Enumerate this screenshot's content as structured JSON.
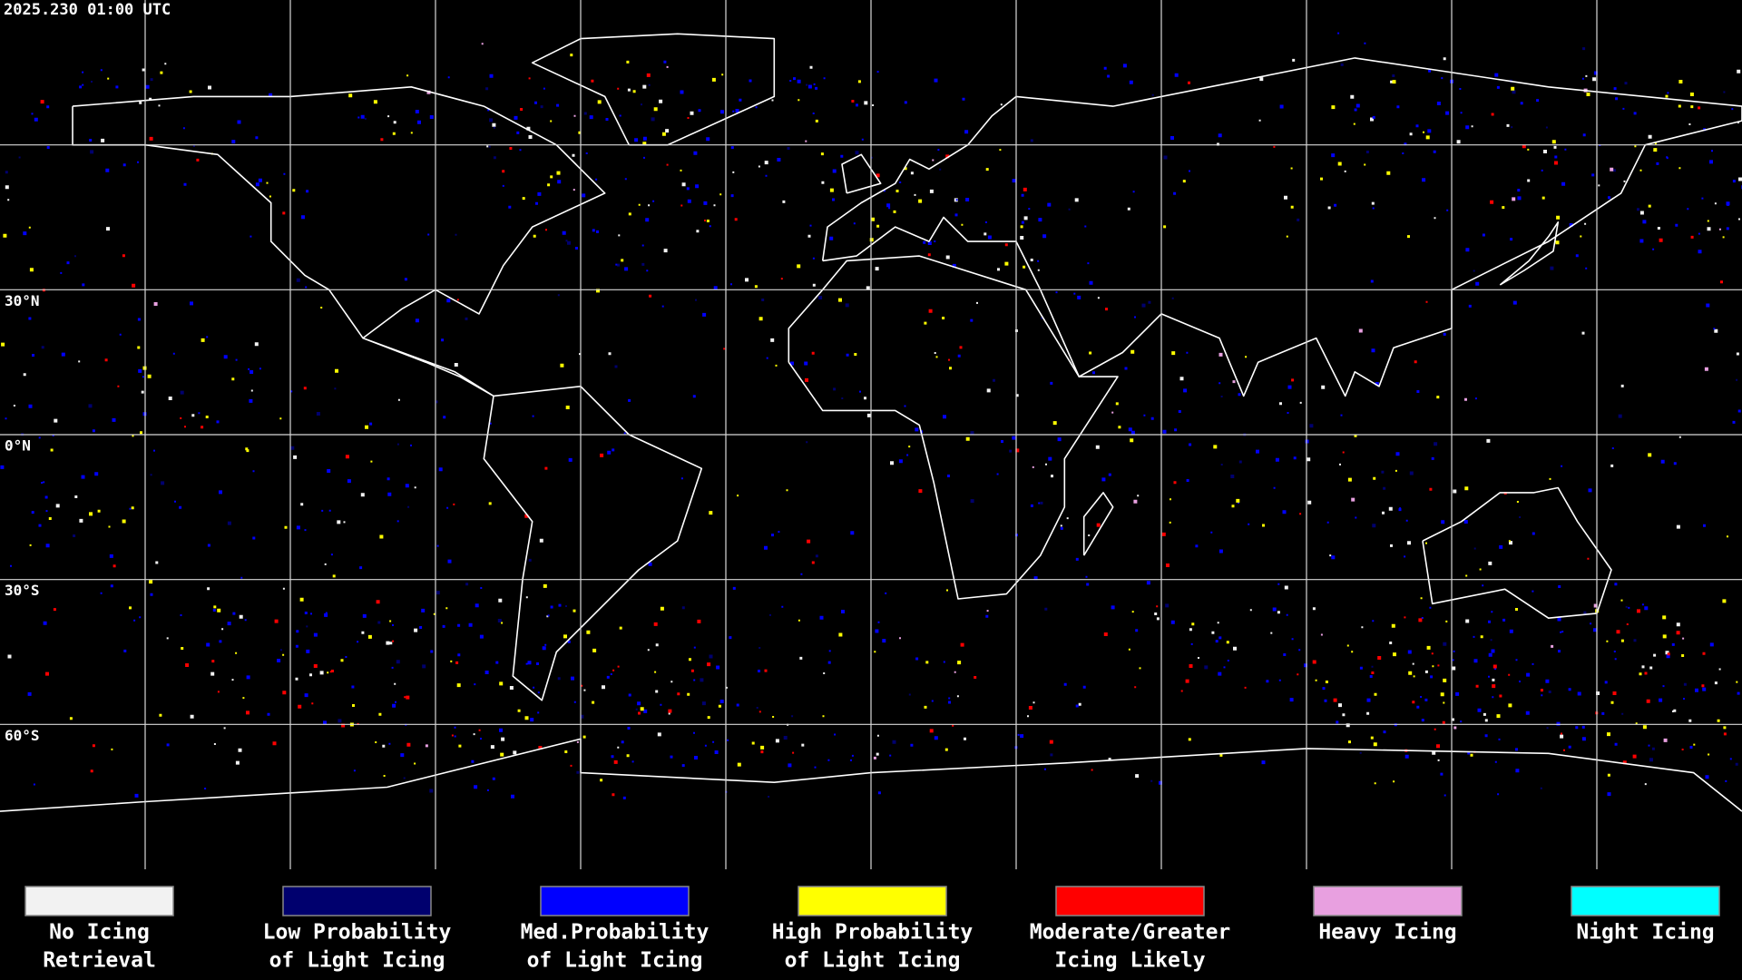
{
  "header": {
    "timestamp": "2025.230 01:00 UTC"
  },
  "map": {
    "latitude_labels": [
      "30°N",
      "0°N",
      "30°S",
      "60°S"
    ]
  },
  "legend": [
    {
      "color": "#f2f2f2",
      "lines": [
        "No Icing",
        "Retrieval"
      ]
    },
    {
      "color": "#00006e",
      "lines": [
        "Low Probability",
        "of Light Icing"
      ]
    },
    {
      "color": "#0000ff",
      "lines": [
        "Med.Probability",
        "of Light Icing"
      ]
    },
    {
      "color": "#ffff00",
      "lines": [
        "High Probability",
        "of Light Icing"
      ]
    },
    {
      "color": "#ff0000",
      "lines": [
        "Moderate/Greater",
        "Icing Likely"
      ]
    },
    {
      "color": "#e8a0e0",
      "lines": [
        "Heavy Icing"
      ]
    },
    {
      "color": "#00ffff",
      "lines": [
        "Night Icing"
      ]
    }
  ]
}
